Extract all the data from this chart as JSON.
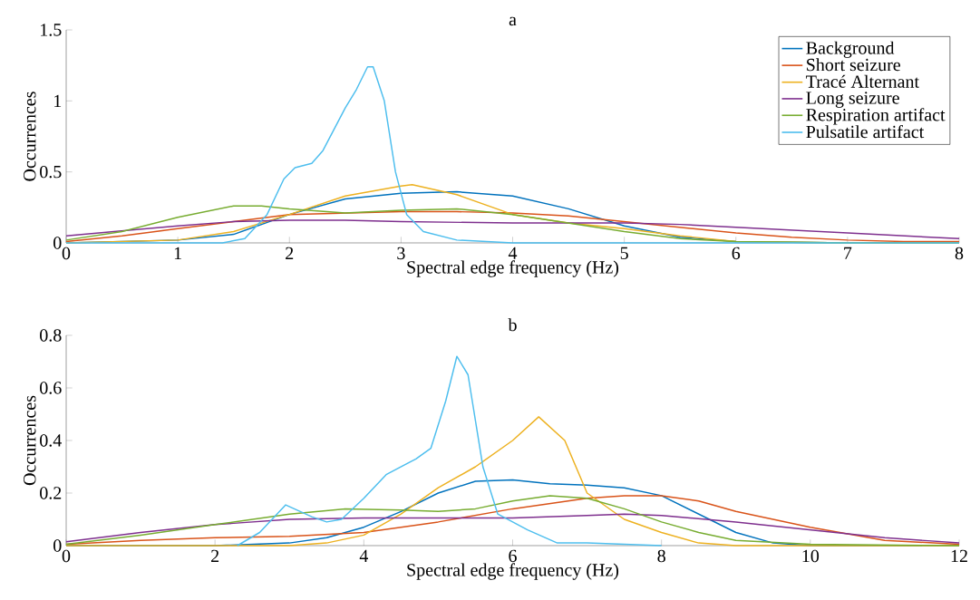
{
  "chart_data": [
    {
      "type": "line",
      "title": "a",
      "xlabel": "Spectral edge frequency (Hz)",
      "ylabel": "Occurrences",
      "xlim": [
        0,
        8
      ],
      "ylim": [
        0,
        1.5
      ],
      "xticks": [
        0,
        1,
        2,
        3,
        4,
        5,
        6,
        7,
        8
      ],
      "yticks": [
        0,
        0.5,
        1,
        1.5
      ],
      "legend": "top right",
      "series": [
        {
          "name": "Background",
          "color": "#0072bd",
          "x": [
            0,
            1,
            1.5,
            2,
            2.5,
            3,
            3.5,
            4,
            4.5,
            5,
            5.5,
            6,
            7,
            8
          ],
          "values": [
            0,
            0.02,
            0.06,
            0.2,
            0.31,
            0.35,
            0.36,
            0.33,
            0.24,
            0.12,
            0.04,
            0.01,
            0,
            0
          ]
        },
        {
          "name": "Short seizure",
          "color": "#d95319",
          "x": [
            0,
            0.5,
            1,
            1.5,
            2,
            2.5,
            3,
            3.5,
            4,
            4.5,
            5,
            5.5,
            6,
            6.5,
            7,
            7.5,
            8
          ],
          "values": [
            0.01,
            0.05,
            0.1,
            0.15,
            0.2,
            0.21,
            0.22,
            0.22,
            0.21,
            0.19,
            0.15,
            0.11,
            0.07,
            0.04,
            0.02,
            0.01,
            0.01
          ]
        },
        {
          "name": "Tracé Alternant",
          "color": "#edb120",
          "x": [
            0,
            1,
            1.5,
            2,
            2.5,
            3,
            3.1,
            3.5,
            4,
            4.5,
            5,
            5.5,
            6,
            7,
            8
          ],
          "values": [
            0,
            0.02,
            0.08,
            0.2,
            0.33,
            0.4,
            0.41,
            0.34,
            0.2,
            0.14,
            0.1,
            0.05,
            0.01,
            0,
            0
          ]
        },
        {
          "name": "Long seizure",
          "color": "#7e2f8e",
          "x": [
            0,
            1,
            1.5,
            2,
            2.5,
            3,
            4,
            5,
            5.5,
            6,
            7,
            8
          ],
          "values": [
            0.05,
            0.12,
            0.15,
            0.16,
            0.16,
            0.15,
            0.14,
            0.14,
            0.13,
            0.11,
            0.07,
            0.03
          ]
        },
        {
          "name": "Respiration artifact",
          "color": "#77ac30",
          "x": [
            0,
            0.5,
            1,
            1.5,
            1.75,
            2,
            2.5,
            3,
            3.5,
            4,
            4.5,
            5,
            5.5,
            6,
            7,
            8
          ],
          "values": [
            0.02,
            0.08,
            0.18,
            0.26,
            0.26,
            0.24,
            0.21,
            0.23,
            0.24,
            0.2,
            0.14,
            0.08,
            0.03,
            0.01,
            0,
            0
          ]
        },
        {
          "name": "Pulsatile artifact",
          "color": "#4dbeee",
          "x": [
            0,
            1.4,
            1.6,
            1.8,
            1.95,
            2.05,
            2.2,
            2.3,
            2.5,
            2.6,
            2.7,
            2.75,
            2.85,
            2.95,
            3.05,
            3.2,
            3.5,
            4,
            8
          ],
          "values": [
            0,
            0,
            0.03,
            0.2,
            0.45,
            0.53,
            0.56,
            0.65,
            0.95,
            1.08,
            1.24,
            1.24,
            1.0,
            0.5,
            0.2,
            0.08,
            0.02,
            0,
            0
          ]
        }
      ]
    },
    {
      "type": "line",
      "title": "b",
      "xlabel": "Spectral edge frequency (Hz)",
      "ylabel": "Occurrences",
      "xlim": [
        0,
        12
      ],
      "ylim": [
        0,
        0.8
      ],
      "xticks": [
        0,
        2,
        4,
        6,
        8,
        10,
        12
      ],
      "yticks": [
        0,
        0.2,
        0.4,
        0.6,
        0.8
      ],
      "series": [
        {
          "color": "#0072bd",
          "x": [
            0,
            2,
            3,
            3.5,
            4,
            4.5,
            5,
            5.5,
            6,
            6.5,
            7,
            7.5,
            8,
            8.5,
            9,
            9.5,
            10,
            12
          ],
          "values": [
            0,
            0,
            0.01,
            0.03,
            0.07,
            0.13,
            0.2,
            0.245,
            0.25,
            0.235,
            0.23,
            0.22,
            0.19,
            0.12,
            0.05,
            0.01,
            0,
            0
          ]
        },
        {
          "color": "#d95319",
          "x": [
            0,
            1,
            2,
            3,
            4,
            5,
            6,
            7,
            7.5,
            8,
            8.5,
            9,
            10,
            11,
            12
          ],
          "values": [
            0.005,
            0.02,
            0.03,
            0.035,
            0.05,
            0.09,
            0.14,
            0.18,
            0.19,
            0.19,
            0.17,
            0.13,
            0.07,
            0.02,
            0.005
          ]
        },
        {
          "color": "#edb120",
          "x": [
            0,
            3,
            3.5,
            4,
            4.5,
            5,
            5.5,
            6,
            6.35,
            6.7,
            7,
            7.5,
            8,
            8.5,
            9,
            12
          ],
          "values": [
            0,
            0,
            0.01,
            0.04,
            0.12,
            0.22,
            0.3,
            0.4,
            0.49,
            0.4,
            0.2,
            0.1,
            0.05,
            0.01,
            0,
            0
          ]
        },
        {
          "color": "#7e2f8e",
          "x": [
            0,
            1,
            2,
            3,
            4,
            5,
            6,
            7,
            7.5,
            8,
            9,
            10,
            11,
            12
          ],
          "values": [
            0.015,
            0.05,
            0.08,
            0.1,
            0.105,
            0.105,
            0.105,
            0.115,
            0.12,
            0.115,
            0.09,
            0.06,
            0.03,
            0.01
          ]
        },
        {
          "color": "#77ac30",
          "x": [
            0,
            1,
            2,
            3,
            3.75,
            4.5,
            5,
            5.5,
            6,
            6.5,
            7,
            7.5,
            8,
            8.5,
            9,
            10,
            12
          ],
          "values": [
            0.005,
            0.04,
            0.08,
            0.12,
            0.14,
            0.135,
            0.13,
            0.14,
            0.17,
            0.19,
            0.18,
            0.14,
            0.09,
            0.05,
            0.02,
            0.005,
            0
          ]
        },
        {
          "color": "#4dbeee",
          "x": [
            2.3,
            2.6,
            2.95,
            3.3,
            3.5,
            3.7,
            4,
            4.3,
            4.7,
            4.9,
            5.1,
            5.25,
            5.4,
            5.6,
            5.8,
            6.2,
            6.6,
            7,
            7.5,
            8
          ],
          "values": [
            0,
            0.05,
            0.155,
            0.11,
            0.09,
            0.1,
            0.18,
            0.27,
            0.33,
            0.37,
            0.55,
            0.72,
            0.65,
            0.3,
            0.12,
            0.06,
            0.01,
            0.01,
            0.005,
            0
          ]
        }
      ]
    }
  ]
}
